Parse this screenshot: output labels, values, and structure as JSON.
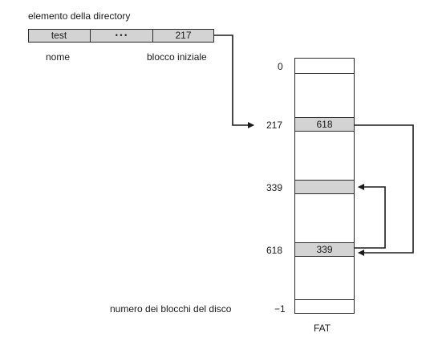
{
  "directory_entry": {
    "title": "elemento della directory",
    "fields": [
      "test",
      "• • •",
      "217"
    ],
    "name_caption": "nome",
    "start_caption": "blocco iniziale"
  },
  "fat": {
    "caption": "FAT",
    "disk_blocks_caption": "numero dei blocchi del disco",
    "index_labels": {
      "top": "0",
      "a": "217",
      "b": "339",
      "c": "618",
      "last": "−1"
    },
    "entries": {
      "a_value": "618",
      "c_value": "339"
    }
  },
  "colors": {
    "shaded_cell": "#d3d3d3",
    "line": "#1a1a1a"
  }
}
